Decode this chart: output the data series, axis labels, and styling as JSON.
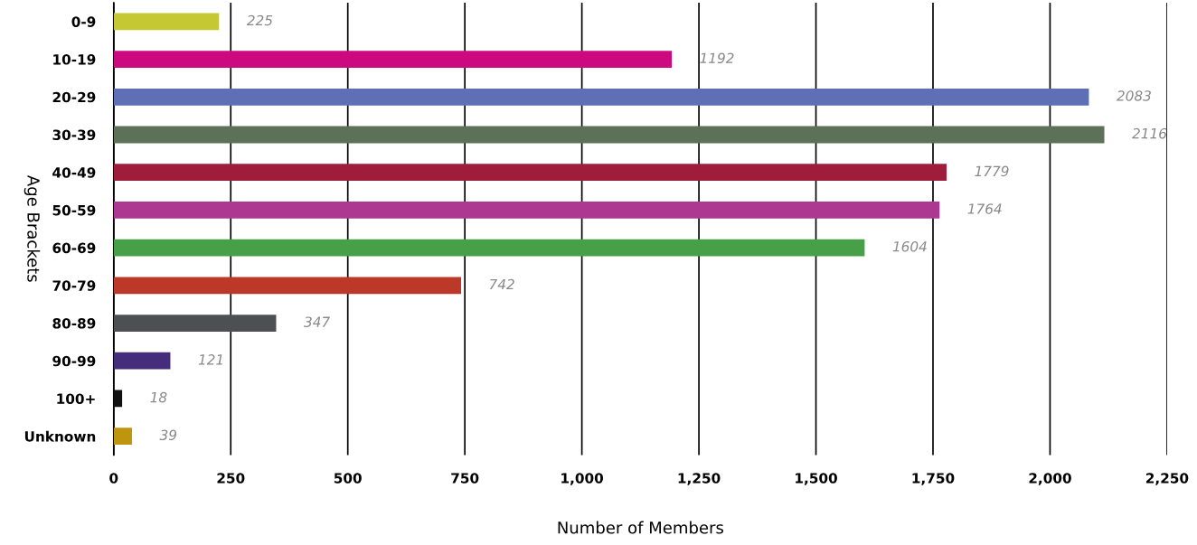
{
  "chart_data": {
    "type": "bar",
    "orientation": "horizontal",
    "xlabel": "Number of Members",
    "ylabel": "Age Brackets",
    "categories": [
      "0-9",
      "10-19",
      "20-29",
      "30-39",
      "40-49",
      "50-59",
      "60-69",
      "70-79",
      "80-89",
      "90-99",
      "100+",
      "Unknown"
    ],
    "values": [
      225,
      1192,
      2083,
      2116,
      1779,
      1764,
      1604,
      742,
      347,
      121,
      18,
      39
    ],
    "colors": [
      "#c5c832",
      "#cc0a80",
      "#5f6fb5",
      "#5c7158",
      "#9f1c3b",
      "#ad3892",
      "#47a047",
      "#bc3828",
      "#4d5052",
      "#462d7b",
      "#111111",
      "#bf940f"
    ],
    "xlim": [
      0,
      2250
    ],
    "xticks": [
      0,
      250,
      500,
      750,
      {
        "value": 1000,
        "label": "1,000"
      },
      {
        "value": 1250,
        "label": "1,250"
      },
      {
        "value": 1500,
        "label": "1,500"
      },
      {
        "value": 1750,
        "label": "1,750"
      },
      {
        "value": 2000,
        "label": "2,000"
      },
      {
        "value": 2250,
        "label": "2,250"
      }
    ],
    "grid": "x",
    "data_labels": true,
    "legend": false
  }
}
